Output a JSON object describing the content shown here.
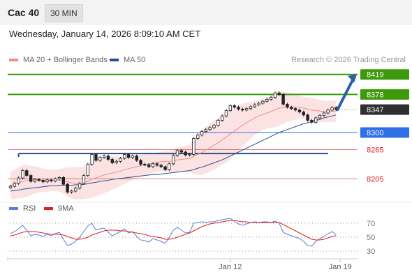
{
  "header": {
    "instrument": "Cac 40",
    "interval": "30 MIN",
    "datetime": "Wednesday, January 14, 2026 8:09:10 AM CET"
  },
  "legend": {
    "ma20_label": "MA 20 + Bollinger Bands",
    "ma20_color": "#f28b8b",
    "ma50_label": "MA 50",
    "ma50_color": "#2a4f8f",
    "credit": "Research © 2026 Trading Central"
  },
  "rsi_legend": {
    "rsi_label": "RSI",
    "rsi_color": "#5b7fd6",
    "ma_label": "9MA",
    "ma_color": "#e02020"
  },
  "chart_data": {
    "type": "candlestick",
    "ylim": [
      8160,
      8440
    ],
    "x_tick_labels": [
      {
        "label": "Jan 12",
        "index": 54
      },
      {
        "label": "Jan 19",
        "index": 81
      }
    ],
    "levels": [
      {
        "value": 8419,
        "label": "8419",
        "style": "resistance",
        "color": "#3d9a0b"
      },
      {
        "value": 8378,
        "label": "8378",
        "style": "resistance",
        "color": "#3d9a0b"
      },
      {
        "value": 8347,
        "label": "8347",
        "style": "last",
        "color": "#2f2f2f"
      },
      {
        "value": 8300,
        "label": "8300",
        "style": "pivot",
        "color": "#2e6ee6"
      },
      {
        "value": 8265,
        "label": "8265",
        "style": "support",
        "color": "#d82020"
      },
      {
        "value": 8205,
        "label": "8205",
        "style": "support",
        "color": "#d82020"
      }
    ],
    "close": [
      8190,
      8196,
      8207,
      8222,
      8212,
      8200,
      8204,
      8202,
      8199,
      8203,
      8201,
      8205,
      8208,
      8194,
      8178,
      8180,
      8186,
      8196,
      8212,
      8235,
      8255,
      8243,
      8249,
      8252,
      8245,
      8238,
      8241,
      8247,
      8255,
      8249,
      8252,
      8243,
      8235,
      8234,
      8230,
      8236,
      8233,
      8230,
      8224,
      8236,
      8253,
      8263,
      8260,
      8254,
      8255,
      8288,
      8295,
      8302,
      8306,
      8310,
      8315,
      8325,
      8334,
      8345,
      8355,
      8352,
      8348,
      8346,
      8349,
      8353,
      8357,
      8360,
      8364,
      8368,
      8372,
      8381,
      8378,
      8358,
      8352,
      8349,
      8346,
      8342,
      8336,
      8325,
      8321,
      8330,
      8335,
      8340,
      8346,
      8351,
      8347
    ],
    "ma20": [
      8192,
      8194,
      8197,
      8200,
      8201,
      8202,
      8203,
      8203,
      8202,
      8202,
      8202,
      8202,
      8202,
      8201,
      8199,
      8197,
      8196,
      8196,
      8197,
      8200,
      8204,
      8207,
      8210,
      8213,
      8215,
      8217,
      8219,
      8221,
      8224,
      8226,
      8228,
      8230,
      8232,
      8234,
      8236,
      8237,
      8239,
      8240,
      8241,
      8241,
      8242,
      8244,
      8245,
      8246,
      8247,
      8251,
      8255,
      8259,
      8264,
      8269,
      8274,
      8279,
      8285,
      8291,
      8297,
      8303,
      8309,
      8315,
      8320,
      8325,
      8330,
      8334,
      8337,
      8340,
      8343,
      8347,
      8350,
      8351,
      8352,
      8352,
      8352,
      8352,
      8350,
      8348,
      8346,
      8345,
      8344,
      8343,
      8343,
      8344,
      8344
    ],
    "ma50": [
      8180,
      8181,
      8182,
      8184,
      8185,
      8186,
      8187,
      8188,
      8189,
      8190,
      8191,
      8191,
      8192,
      8192,
      8192,
      8192,
      8193,
      8193,
      8194,
      8195,
      8197,
      8198,
      8200,
      8201,
      8202,
      8204,
      8205,
      8206,
      8207,
      8208,
      8209,
      8210,
      8211,
      8212,
      8213,
      8214,
      8214,
      8215,
      8216,
      8217,
      8218,
      8219,
      8220,
      8221,
      8222,
      8224,
      8227,
      8229,
      8232,
      8235,
      8238,
      8241,
      8244,
      8248,
      8252,
      8256,
      8260,
      8264,
      8268,
      8272,
      8276,
      8280,
      8284,
      8288,
      8292,
      8296,
      8300,
      8303,
      8306,
      8309,
      8312,
      8315,
      8318,
      8320,
      8322,
      8325,
      8327,
      8330,
      8332,
      8334,
      8336
    ],
    "bollinger_width": [
      28,
      30,
      32,
      34,
      33,
      30,
      28,
      26,
      24,
      23,
      22,
      22,
      23,
      26,
      30,
      32,
      33,
      33,
      33,
      35,
      38,
      38,
      38,
      37,
      36,
      34,
      32,
      30,
      29,
      27,
      25,
      24,
      23,
      22,
      21,
      20,
      20,
      20,
      21,
      21,
      23,
      25,
      26,
      27,
      28,
      36,
      42,
      46,
      48,
      49,
      50,
      50,
      51,
      52,
      52,
      50,
      47,
      44,
      41,
      38,
      35,
      33,
      32,
      32,
      33,
      36,
      36,
      33,
      30,
      28,
      26,
      24,
      23,
      24,
      25,
      24,
      23,
      22,
      22,
      22,
      22
    ],
    "projection": {
      "from_index": 80,
      "from_value": 8347,
      "to_value": 8419
    },
    "rsi": {
      "ylim": [
        20,
        80
      ],
      "ticks": [
        70,
        50,
        30
      ],
      "rsi": [
        55,
        58,
        62,
        67,
        60,
        52,
        54,
        53,
        51,
        54,
        52,
        55,
        57,
        47,
        38,
        40,
        44,
        50,
        58,
        66,
        70,
        60,
        62,
        63,
        57,
        52,
        55,
        58,
        62,
        56,
        58,
        51,
        46,
        45,
        43,
        48,
        46,
        44,
        41,
        50,
        60,
        64,
        60,
        56,
        57,
        70,
        71,
        72,
        71,
        72,
        72,
        74,
        75,
        76,
        77,
        73,
        69,
        67,
        69,
        71,
        72,
        71,
        72,
        72,
        71,
        73,
        70,
        57,
        54,
        52,
        50,
        48,
        44,
        38,
        37,
        44,
        48,
        51,
        55,
        58,
        53
      ],
      "ma9": [
        52,
        53,
        55,
        57,
        58,
        58,
        58,
        57,
        56,
        55,
        54,
        54,
        54,
        53,
        51,
        49,
        47,
        47,
        48,
        50,
        53,
        55,
        57,
        59,
        60,
        60,
        60,
        59,
        59,
        58,
        57,
        56,
        55,
        54,
        52,
        51,
        50,
        49,
        47,
        47,
        48,
        50,
        52,
        54,
        56,
        59,
        62,
        65,
        67,
        69,
        70,
        71,
        72,
        73,
        74,
        74,
        73,
        72,
        72,
        71,
        71,
        71,
        71,
        71,
        71,
        71,
        71,
        68,
        65,
        62,
        59,
        56,
        53,
        50,
        47,
        46,
        46,
        47,
        49,
        51,
        52
      ]
    }
  }
}
